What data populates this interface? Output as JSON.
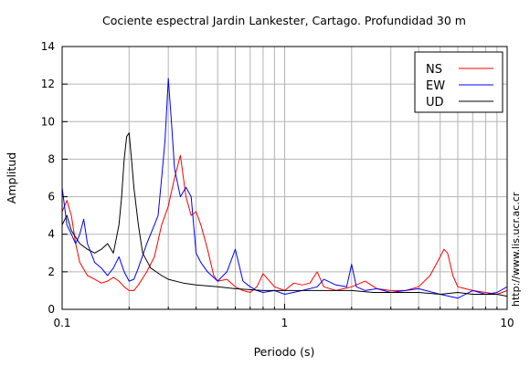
{
  "chart_data": {
    "type": "line",
    "title": "Cociente espectral Jardin Lankester, Cartago. Profundidad 30 m",
    "xlabel": "Periodo (s)",
    "ylabel": "Amplitud",
    "xscale": "log",
    "xlim": [
      0.1,
      10
    ],
    "ylim": [
      0,
      14
    ],
    "x_ticks": [
      {
        "v": 0.1,
        "label": "0.1"
      },
      {
        "v": 1,
        "label": "1"
      },
      {
        "v": 10,
        "label": "10"
      }
    ],
    "y_ticks": [
      {
        "v": 0,
        "label": "0"
      },
      {
        "v": 2,
        "label": "2"
      },
      {
        "v": 4,
        "label": "4"
      },
      {
        "v": 6,
        "label": "6"
      },
      {
        "v": 8,
        "label": "8"
      },
      {
        "v": 10,
        "label": "10"
      },
      {
        "v": 12,
        "label": "12"
      },
      {
        "v": 14,
        "label": "14"
      }
    ],
    "grid": true,
    "legend_position": "top-right",
    "credit": "http://www.lis.ucr.ac.cr",
    "series": [
      {
        "name": "NS",
        "color": "#ff0000",
        "x": [
          0.1,
          0.105,
          0.11,
          0.115,
          0.12,
          0.13,
          0.14,
          0.15,
          0.16,
          0.17,
          0.18,
          0.19,
          0.2,
          0.21,
          0.22,
          0.24,
          0.26,
          0.28,
          0.3,
          0.32,
          0.34,
          0.36,
          0.38,
          0.4,
          0.42,
          0.45,
          0.48,
          0.5,
          0.55,
          0.6,
          0.65,
          0.7,
          0.75,
          0.8,
          0.9,
          1.0,
          1.1,
          1.2,
          1.3,
          1.4,
          1.5,
          1.7,
          2.0,
          2.3,
          2.6,
          3.0,
          3.5,
          4.0,
          4.5,
          5.0,
          5.2,
          5.4,
          5.7,
          6.0,
          7.0,
          8.0,
          9.0,
          10.0
        ],
        "y": [
          5.2,
          5.8,
          5.0,
          3.5,
          2.5,
          1.8,
          1.6,
          1.4,
          1.5,
          1.7,
          1.5,
          1.2,
          1.0,
          1.0,
          1.3,
          2.0,
          2.8,
          4.5,
          5.5,
          7.0,
          8.2,
          6.0,
          5.0,
          5.2,
          4.5,
          3.2,
          1.8,
          1.5,
          1.6,
          1.2,
          1.0,
          0.9,
          1.2,
          1.9,
          1.2,
          1.0,
          1.4,
          1.3,
          1.4,
          2.0,
          1.2,
          1.0,
          1.2,
          1.5,
          1.1,
          1.0,
          1.0,
          1.2,
          1.8,
          2.8,
          3.2,
          3.0,
          1.8,
          1.2,
          1.0,
          0.9,
          0.8,
          1.0
        ]
      },
      {
        "name": "EW",
        "color": "#0000ff",
        "x": [
          0.1,
          0.105,
          0.11,
          0.115,
          0.12,
          0.125,
          0.13,
          0.14,
          0.15,
          0.16,
          0.17,
          0.18,
          0.19,
          0.2,
          0.21,
          0.22,
          0.24,
          0.26,
          0.27,
          0.28,
          0.29,
          0.3,
          0.31,
          0.32,
          0.34,
          0.36,
          0.38,
          0.4,
          0.42,
          0.45,
          0.5,
          0.55,
          0.6,
          0.65,
          0.7,
          0.75,
          0.8,
          0.9,
          1.0,
          1.2,
          1.4,
          1.5,
          1.7,
          1.9,
          2.0,
          2.1,
          2.3,
          2.6,
          3.0,
          3.5,
          4.0,
          5.0,
          6.0,
          7.0,
          8.0,
          9.0,
          10.0
        ],
        "y": [
          6.5,
          4.5,
          4.0,
          3.5,
          4.0,
          4.8,
          3.5,
          2.5,
          2.2,
          1.8,
          2.2,
          2.8,
          2.0,
          1.5,
          1.6,
          2.2,
          3.5,
          4.5,
          5.0,
          7.0,
          9.0,
          12.3,
          10.0,
          7.5,
          6.0,
          6.5,
          6.0,
          3.0,
          2.5,
          2.0,
          1.5,
          2.0,
          3.2,
          1.5,
          1.2,
          1.0,
          0.9,
          1.0,
          0.8,
          1.0,
          1.2,
          1.6,
          1.3,
          1.2,
          2.4,
          1.2,
          1.0,
          1.1,
          0.9,
          1.0,
          1.1,
          0.8,
          0.6,
          1.0,
          0.8,
          0.9,
          1.2
        ]
      },
      {
        "name": "UD",
        "color": "#000000",
        "x": [
          0.1,
          0.105,
          0.11,
          0.12,
          0.13,
          0.14,
          0.15,
          0.16,
          0.17,
          0.18,
          0.185,
          0.19,
          0.195,
          0.2,
          0.205,
          0.21,
          0.22,
          0.23,
          0.25,
          0.28,
          0.3,
          0.35,
          0.4,
          0.5,
          0.6,
          0.8,
          1.0,
          1.5,
          2.0,
          2.5,
          3.0,
          4.0,
          5.0,
          6.0,
          7.0,
          8.0,
          9.0,
          10.0
        ],
        "y": [
          4.5,
          5.0,
          4.2,
          3.5,
          3.2,
          3.0,
          3.2,
          3.5,
          3.0,
          4.5,
          6.0,
          8.0,
          9.2,
          9.4,
          8.0,
          6.5,
          4.5,
          3.0,
          2.2,
          1.8,
          1.6,
          1.4,
          1.3,
          1.2,
          1.1,
          1.0,
          1.0,
          1.0,
          1.0,
          0.9,
          0.9,
          0.9,
          0.8,
          0.9,
          0.8,
          0.8,
          0.8,
          0.7
        ]
      }
    ]
  }
}
